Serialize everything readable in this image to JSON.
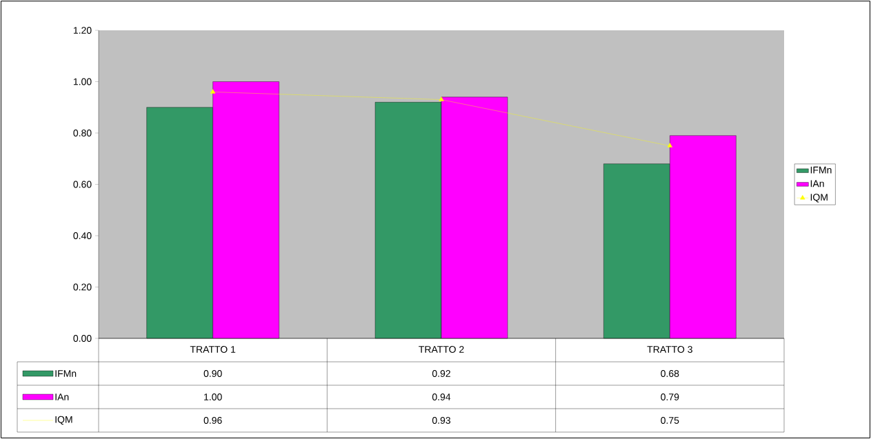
{
  "chart_data": {
    "type": "bar",
    "categories": [
      "TRATTO 1",
      "TRATTO 2",
      "TRATTO 3"
    ],
    "series": [
      {
        "name": "IFMn",
        "type": "bar",
        "color": "#339966",
        "values": [
          0.9,
          0.92,
          0.68
        ],
        "value_labels": [
          "0.90",
          "0.92",
          "0.68"
        ]
      },
      {
        "name": "IAn",
        "type": "bar",
        "color": "#ff00ff",
        "values": [
          1.0,
          0.94,
          0.79
        ],
        "value_labels": [
          "1.00",
          "0.94",
          "0.79"
        ]
      },
      {
        "name": "IQM",
        "type": "line",
        "color": "#ffff00",
        "marker": "triangle",
        "values": [
          0.96,
          0.93,
          0.75
        ],
        "value_labels": [
          "0.96",
          "0.93",
          "0.75"
        ]
      }
    ],
    "ylim": [
      0,
      1.2
    ],
    "yticks": [
      {
        "value": 0,
        "label": "0.00"
      },
      {
        "value": 0.2,
        "label": "0.20"
      },
      {
        "value": 0.4,
        "label": "0.40"
      },
      {
        "value": 0.6,
        "label": "0.60"
      },
      {
        "value": 0.8,
        "label": "0.80"
      },
      {
        "value": 1.0,
        "label": "1.00"
      },
      {
        "value": 1.2,
        "label": "1.20"
      }
    ],
    "legend": "right"
  }
}
